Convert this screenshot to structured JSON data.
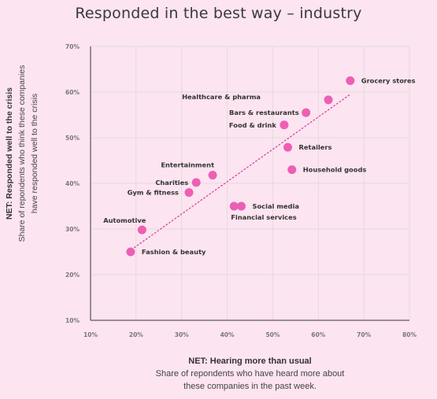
{
  "chart_data": {
    "type": "scatter",
    "title": "Responded in the best way – industry",
    "xlabel": "NET: Hearing more than usual",
    "xlabel_sub_1": "Share of repondents who have heard more about",
    "xlabel_sub_2": "these companies in the past week.",
    "ylabel": "NET: Responded well to the crisis",
    "ylabel_sub_1": "Share of repondents who think these companies",
    "ylabel_sub_2": "have responded well to the crisis",
    "xlim": [
      10,
      80
    ],
    "ylim": [
      10,
      70
    ],
    "x_ticks": [
      "10%",
      "20%",
      "30%",
      "40%",
      "50%",
      "60%",
      "70%",
      "80%"
    ],
    "y_ticks": [
      "10%",
      "20%",
      "30%",
      "40%",
      "50%",
      "60%",
      "70%"
    ],
    "grid": true,
    "point_color": "#ec5fb4",
    "trendline": {
      "style": "dotted",
      "color": "#d63fa2",
      "from": [
        19,
        25.5
      ],
      "to": [
        67,
        59.5
      ]
    },
    "points": [
      {
        "label": "Grocery stores",
        "x": 67,
        "y": 62.5
      },
      {
        "label": "Healthcare & pharma",
        "x": 62.2,
        "y": 58.3
      },
      {
        "label": "Bars & restaurants",
        "x": 57.3,
        "y": 55.5
      },
      {
        "label": "Food & drink",
        "x": 52.5,
        "y": 52.8
      },
      {
        "label": "Retailers",
        "x": 53.3,
        "y": 47.9
      },
      {
        "label": "Household goods",
        "x": 54.2,
        "y": 43
      },
      {
        "label": "Entertainment",
        "x": 36.8,
        "y": 41.8
      },
      {
        "label": "Charities",
        "x": 33.2,
        "y": 40.2
      },
      {
        "label": "Gym & fitness",
        "x": 31.6,
        "y": 38
      },
      {
        "label": "Social media",
        "x": 43.1,
        "y": 35
      },
      {
        "label": "Financial services",
        "x": 41.5,
        "y": 35
      },
      {
        "label": "Automotive",
        "x": 21.3,
        "y": 29.8
      },
      {
        "label": "Fashion & beauty",
        "x": 18.8,
        "y": 25
      }
    ]
  }
}
